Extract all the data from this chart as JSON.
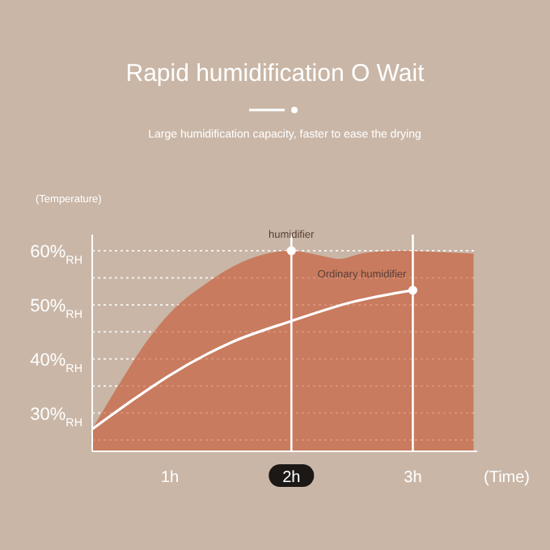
{
  "chart_data": {
    "type": "line",
    "title": "Rapid humidification O Wait",
    "subtitle": "Large humidification capacity, faster to ease the drying",
    "ylabel": "(Temperature)",
    "xlabel": "(Time)",
    "xlim": [
      0.36,
      3.53
    ],
    "xticks": [
      {
        "value": 1,
        "label": "1h"
      },
      {
        "value": 2,
        "label": "2h"
      },
      {
        "value": 3,
        "label": "3h"
      }
    ],
    "ylim": [
      22.9,
      63
    ],
    "yticks": [
      {
        "value": 25,
        "label": null
      },
      {
        "value": 30,
        "label": "30%$_{RH}$"
      },
      {
        "value": 35,
        "label": null
      },
      {
        "value": 40,
        "label": "40%$_{RH}$"
      },
      {
        "value": 45,
        "label": null
      },
      {
        "value": 50,
        "label": "50%$_{RH}$"
      },
      {
        "value": 55,
        "label": null
      },
      {
        "value": 60,
        "label": "60%$_{RH}$"
      }
    ],
    "grid": "y",
    "marker": "none",
    "line_style": "solid",
    "series": [
      {
        "type": "area",
        "color": "#c8542f",
        "x": [
          0.36,
          0.6,
          0.8,
          1.0,
          1.3,
          1.6,
          1.8,
          2.0,
          2.2,
          2.4,
          2.6,
          2.9,
          3.2,
          3.5
        ],
        "values": [
          27,
          36,
          43,
          48.5,
          54,
          58,
          59.5,
          60,
          59.3,
          58.5,
          59.6,
          60,
          59.8,
          59.5
        ]
      },
      {
        "color": "#ffffff",
        "x": [
          0.36,
          0.7,
          1.0,
          1.5,
          2.0,
          2.5,
          3.0
        ],
        "values": [
          27,
          32.5,
          37,
          43,
          47,
          50.5,
          52.7
        ]
      }
    ],
    "ref_lines": [
      {
        "axis": "x",
        "value": 2,
        "color": "#ffffff"
      },
      {
        "axis": "x",
        "value": 3,
        "color": "#ffffff"
      }
    ],
    "annotations": [
      {
        "text": "humidifier",
        "x": 2,
        "y": 60
      },
      {
        "text": "Ordinary humidifier",
        "x": 3,
        "y": 52.7
      }
    ]
  }
}
